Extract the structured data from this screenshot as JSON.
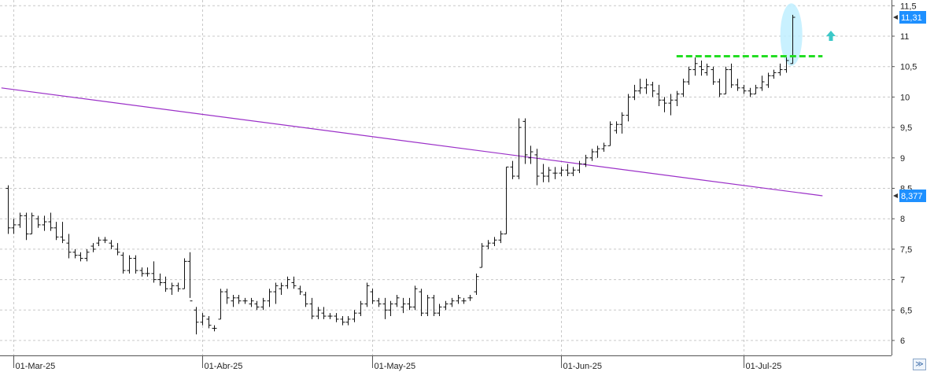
{
  "chart_data": {
    "type": "ohlc",
    "title": "",
    "xlabel": "",
    "ylabel": "",
    "ylim": [
      5.85,
      11.6
    ],
    "grid": true,
    "y_ticks": [
      6,
      6.5,
      7,
      7.5,
      8,
      8.5,
      9,
      9.5,
      10,
      10.5,
      11,
      11.5
    ],
    "y_tick_labels": [
      "6",
      "6,5",
      "7",
      "7,5",
      "8",
      "8,5",
      "9",
      "9,5",
      "10",
      "10,5",
      "11",
      "11,5"
    ],
    "x_ticks": [
      {
        "label": "01-Mar-25",
        "index": 1
      },
      {
        "label": "01-Abr-25",
        "index": 32
      },
      {
        "label": "01-May-25",
        "index": 60
      },
      {
        "label": "01-Jun-25",
        "index": 91
      },
      {
        "label": "01-Jul-25",
        "index": 121
      }
    ],
    "ohlc": [
      [
        8.5,
        8.55,
        7.75,
        7.85
      ],
      [
        7.85,
        8.0,
        7.75,
        7.9
      ],
      [
        7.9,
        8.1,
        7.85,
        8.05
      ],
      [
        8.05,
        8.1,
        7.65,
        7.75
      ],
      [
        7.75,
        8.1,
        7.75,
        8.05
      ],
      [
        8.0,
        8.05,
        7.85,
        7.9
      ],
      [
        7.9,
        8.05,
        7.8,
        7.95
      ],
      [
        7.95,
        8.1,
        7.8,
        7.85
      ],
      [
        7.85,
        7.95,
        7.65,
        7.7
      ],
      [
        7.7,
        7.95,
        7.6,
        7.65
      ],
      [
        7.6,
        7.75,
        7.35,
        7.45
      ],
      [
        7.45,
        7.5,
        7.35,
        7.4
      ],
      [
        7.4,
        7.45,
        7.3,
        7.35
      ],
      [
        7.35,
        7.5,
        7.3,
        7.45
      ],
      [
        7.55,
        7.6,
        7.45,
        7.5
      ],
      [
        7.6,
        7.7,
        7.55,
        7.65
      ],
      [
        7.65,
        7.7,
        7.6,
        7.65
      ],
      [
        7.6,
        7.65,
        7.5,
        7.55
      ],
      [
        7.5,
        7.6,
        7.4,
        7.45
      ],
      [
        7.4,
        7.45,
        7.1,
        7.15
      ],
      [
        7.15,
        7.4,
        7.1,
        7.35
      ],
      [
        7.35,
        7.4,
        7.1,
        7.15
      ],
      [
        7.15,
        7.2,
        7.05,
        7.1
      ],
      [
        7.1,
        7.2,
        7.05,
        7.1
      ],
      [
        7.1,
        7.3,
        6.95,
        7.0
      ],
      [
        7.0,
        7.1,
        6.9,
        6.95
      ],
      [
        6.95,
        7.05,
        6.8,
        6.85
      ],
      [
        6.85,
        6.95,
        6.75,
        6.9
      ],
      [
        6.9,
        6.95,
        6.8,
        6.85
      ],
      [
        6.85,
        7.35,
        6.85,
        7.3
      ],
      [
        7.3,
        7.45,
        6.7,
        6.65
      ],
      [
        6.5,
        6.55,
        6.1,
        6.3
      ],
      [
        6.3,
        6.45,
        6.25,
        6.4
      ],
      [
        6.35,
        6.4,
        6.2,
        6.25
      ],
      [
        6.2,
        6.25,
        6.15,
        6.2
      ],
      [
        6.35,
        6.85,
        6.35,
        6.8
      ],
      [
        6.8,
        6.85,
        6.6,
        6.7
      ],
      [
        6.65,
        6.75,
        6.55,
        6.7
      ],
      [
        6.7,
        6.75,
        6.6,
        6.65
      ],
      [
        6.65,
        6.7,
        6.6,
        6.65
      ],
      [
        6.6,
        6.7,
        6.55,
        6.65
      ],
      [
        6.6,
        6.65,
        6.5,
        6.55
      ],
      [
        6.55,
        6.7,
        6.5,
        6.65
      ],
      [
        6.65,
        6.85,
        6.55,
        6.8
      ],
      [
        6.8,
        6.95,
        6.6,
        6.9
      ],
      [
        6.85,
        6.95,
        6.75,
        6.9
      ],
      [
        6.9,
        7.05,
        6.85,
        7.0
      ],
      [
        6.95,
        7.05,
        6.85,
        6.9
      ],
      [
        6.85,
        6.9,
        6.75,
        6.8
      ],
      [
        6.75,
        6.8,
        6.55,
        6.6
      ],
      [
        6.6,
        6.7,
        6.35,
        6.4
      ],
      [
        6.4,
        6.55,
        6.35,
        6.5
      ],
      [
        6.45,
        6.55,
        6.35,
        6.4
      ],
      [
        6.4,
        6.45,
        6.35,
        6.4
      ],
      [
        6.4,
        6.45,
        6.3,
        6.35
      ],
      [
        6.35,
        6.4,
        6.25,
        6.3
      ],
      [
        6.3,
        6.4,
        6.25,
        6.35
      ],
      [
        6.35,
        6.5,
        6.3,
        6.45
      ],
      [
        6.45,
        6.65,
        6.4,
        6.6
      ],
      [
        6.6,
        6.95,
        6.55,
        6.9
      ],
      [
        6.8,
        6.85,
        6.6,
        6.65
      ],
      [
        6.65,
        6.7,
        6.55,
        6.6
      ],
      [
        6.6,
        6.7,
        6.35,
        6.5
      ],
      [
        6.5,
        6.65,
        6.4,
        6.6
      ],
      [
        6.6,
        6.75,
        6.55,
        6.7
      ],
      [
        6.55,
        6.7,
        6.45,
        6.6
      ],
      [
        6.6,
        6.7,
        6.5,
        6.55
      ],
      [
        6.55,
        6.9,
        6.5,
        6.85
      ],
      [
        6.8,
        6.85,
        6.4,
        6.45
      ],
      [
        6.45,
        6.75,
        6.4,
        6.7
      ],
      [
        6.7,
        6.75,
        6.4,
        6.45
      ],
      [
        6.45,
        6.6,
        6.4,
        6.55
      ],
      [
        6.55,
        6.65,
        6.5,
        6.6
      ],
      [
        6.6,
        6.7,
        6.55,
        6.65
      ],
      [
        6.65,
        6.75,
        6.6,
        6.7
      ],
      [
        6.65,
        6.7,
        6.6,
        6.65
      ],
      [
        6.7,
        6.75,
        6.65,
        6.7
      ],
      [
        6.8,
        7.1,
        6.75,
        7.05
      ],
      [
        7.2,
        7.6,
        7.2,
        7.55
      ],
      [
        7.55,
        7.65,
        7.5,
        7.6
      ],
      [
        7.6,
        7.7,
        7.55,
        7.65
      ],
      [
        7.65,
        7.8,
        7.6,
        7.75
      ],
      [
        7.75,
        8.85,
        7.75,
        8.85
      ],
      [
        8.85,
        8.95,
        8.65,
        8.7
      ],
      [
        8.7,
        9.65,
        8.65,
        9.5
      ],
      [
        9.6,
        9.65,
        8.9,
        9.05
      ],
      [
        9.0,
        9.2,
        8.9,
        9.1
      ],
      [
        9.05,
        9.15,
        8.55,
        8.7
      ],
      [
        8.75,
        8.9,
        8.6,
        8.7
      ],
      [
        8.7,
        8.85,
        8.6,
        8.8
      ],
      [
        8.75,
        8.85,
        8.65,
        8.75
      ],
      [
        8.75,
        8.85,
        8.7,
        8.8
      ],
      [
        8.8,
        8.9,
        8.7,
        8.75
      ],
      [
        8.75,
        8.85,
        8.7,
        8.8
      ],
      [
        8.8,
        8.95,
        8.75,
        8.9
      ],
      [
        8.9,
        9.05,
        8.85,
        9.0
      ],
      [
        9.0,
        9.15,
        8.95,
        9.1
      ],
      [
        9.1,
        9.2,
        9.0,
        9.15
      ],
      [
        9.15,
        9.25,
        9.1,
        9.2
      ],
      [
        9.2,
        9.6,
        9.2,
        9.55
      ],
      [
        9.45,
        9.6,
        9.4,
        9.55
      ],
      [
        9.55,
        9.75,
        9.4,
        9.7
      ],
      [
        9.7,
        10.05,
        9.6,
        10.0
      ],
      [
        10.0,
        10.2,
        9.95,
        10.1
      ],
      [
        10.1,
        10.3,
        10.05,
        10.15
      ],
      [
        10.15,
        10.3,
        10.05,
        10.2
      ],
      [
        10.2,
        10.25,
        10.0,
        10.1
      ],
      [
        10.05,
        10.2,
        9.85,
        9.95
      ],
      [
        9.95,
        10.0,
        9.75,
        9.9
      ],
      [
        9.9,
        10.05,
        9.7,
        9.95
      ],
      [
        9.95,
        10.1,
        9.85,
        10.05
      ],
      [
        10.05,
        10.3,
        10.0,
        10.25
      ],
      [
        10.25,
        10.5,
        10.2,
        10.45
      ],
      [
        10.45,
        10.65,
        10.35,
        10.55
      ],
      [
        10.5,
        10.6,
        10.35,
        10.45
      ],
      [
        10.4,
        10.55,
        10.35,
        10.5
      ],
      [
        10.45,
        10.5,
        10.2,
        10.25
      ],
      [
        10.25,
        10.3,
        10.0,
        10.05
      ],
      [
        10.05,
        10.5,
        10.05,
        10.45
      ],
      [
        10.45,
        10.55,
        10.15,
        10.2
      ],
      [
        10.2,
        10.3,
        10.1,
        10.15
      ],
      [
        10.15,
        10.2,
        10.05,
        10.1
      ],
      [
        10.1,
        10.15,
        10.0,
        10.05
      ],
      [
        10.05,
        10.2,
        10.05,
        10.15
      ],
      [
        10.15,
        10.35,
        10.1,
        10.25
      ],
      [
        10.2,
        10.4,
        10.15,
        10.35
      ],
      [
        10.35,
        10.45,
        10.3,
        10.4
      ],
      [
        10.4,
        10.55,
        10.35,
        10.45
      ],
      [
        10.45,
        10.65,
        10.4,
        10.6
      ],
      [
        10.55,
        11.35,
        10.55,
        11.31
      ]
    ],
    "series": [
      {
        "type": "line",
        "color": "#9b30c8",
        "x_start_index": -1,
        "y_start": 10.15,
        "y_end": 8.377,
        "x_end_index": 134
      }
    ],
    "overlays": {
      "resistance_level": 10.67,
      "resistance_color": "#22dd22",
      "resistance_from_index": 110,
      "resistance_to_index": 134,
      "highlight_color": "#bfefff",
      "arrow_color": "#3cc8c8",
      "arrow_value": 11.0
    },
    "last_price": {
      "value": 11.31,
      "label": "11,31",
      "color": "#1e90ff"
    },
    "ma_last": {
      "value": 8.377,
      "label": "8,377",
      "color": "#1e90ff"
    }
  },
  "ui": {
    "scroll_icon": "double-chevron-down-icon",
    "scroll_glyph": "≫"
  }
}
